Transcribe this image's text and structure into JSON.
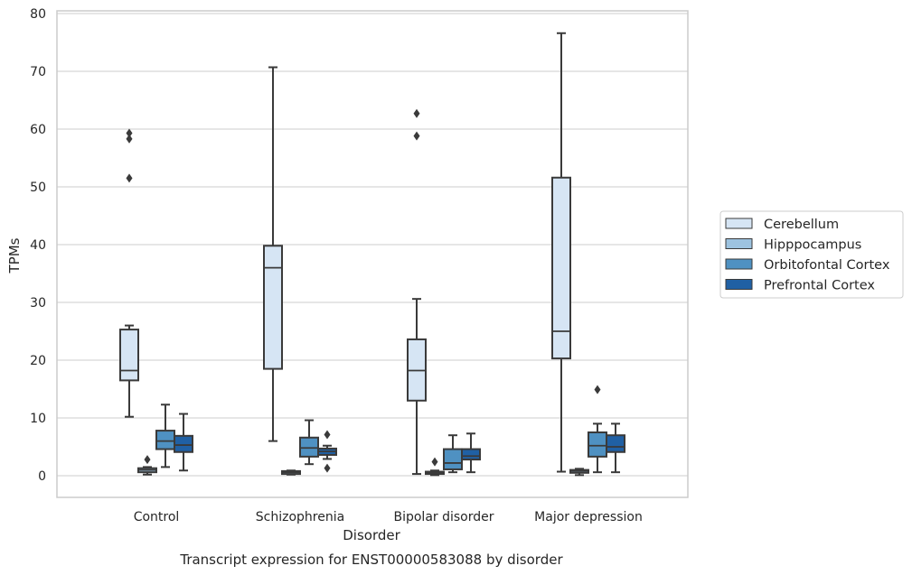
{
  "chart_data": {
    "type": "box",
    "title": "",
    "caption": "Transcript expression for ENST00000583088 by disorder",
    "xlabel": "Disorder",
    "ylabel": "TPMs",
    "ylim": [
      -3.5,
      80.5
    ],
    "yticks": [
      0,
      10,
      20,
      30,
      40,
      50,
      60,
      70,
      80
    ],
    "grid": "horizontal",
    "legend_position": "right",
    "categories": [
      "Control",
      "Schizophrenia",
      "Bipolar disorder",
      "Major depression"
    ],
    "series": [
      {
        "name": "Cerebellum",
        "color": "#d6e5f4",
        "boxes": [
          {
            "whisker_low": 10.2,
            "q1": 16.5,
            "median": 18.2,
            "q3": 25.3,
            "whisker_high": 26.0,
            "outliers": [
              51.5,
              58.3,
              59.3
            ]
          },
          {
            "whisker_low": 6.0,
            "q1": 18.5,
            "median": 36.0,
            "q3": 39.8,
            "whisker_high": 70.7,
            "outliers": []
          },
          {
            "whisker_low": 0.3,
            "q1": 13.0,
            "median": 18.2,
            "q3": 23.6,
            "whisker_high": 30.6,
            "outliers": [
              58.8,
              62.7
            ]
          },
          {
            "whisker_low": 0.7,
            "q1": 20.3,
            "median": 25.0,
            "q3": 51.6,
            "whisker_high": 76.6,
            "outliers": []
          }
        ]
      },
      {
        "name": "Hipppocampus",
        "color": "#9dc3e0",
        "boxes": [
          {
            "whisker_low": 0.2,
            "q1": 0.6,
            "median": 1.0,
            "q3": 1.3,
            "whisker_high": 1.5,
            "outliers": [
              2.8
            ]
          },
          {
            "whisker_low": 0.2,
            "q1": 0.3,
            "median": 0.6,
            "q3": 0.8,
            "whisker_high": 0.9,
            "outliers": []
          },
          {
            "whisker_low": 0.1,
            "q1": 0.3,
            "median": 0.5,
            "q3": 0.7,
            "whisker_high": 0.9,
            "outliers": [
              2.4
            ]
          },
          {
            "whisker_low": 0.1,
            "q1": 0.5,
            "median": 0.8,
            "q3": 1.0,
            "whisker_high": 1.2,
            "outliers": []
          }
        ]
      },
      {
        "name": "Orbitofontal Cortex",
        "color": "#4f91c2",
        "boxes": [
          {
            "whisker_low": 1.5,
            "q1": 4.6,
            "median": 6.0,
            "q3": 7.8,
            "whisker_high": 12.3,
            "outliers": []
          },
          {
            "whisker_low": 2.0,
            "q1": 3.3,
            "median": 4.8,
            "q3": 6.6,
            "whisker_high": 9.6,
            "outliers": []
          },
          {
            "whisker_low": 0.6,
            "q1": 1.1,
            "median": 2.2,
            "q3": 4.6,
            "whisker_high": 7.0,
            "outliers": []
          },
          {
            "whisker_low": 0.6,
            "q1": 3.3,
            "median": 5.2,
            "q3": 7.5,
            "whisker_high": 9.0,
            "outliers": [
              14.9
            ]
          }
        ]
      },
      {
        "name": "Prefrontal Cortex",
        "color": "#2060a4",
        "boxes": [
          {
            "whisker_low": 0.9,
            "q1": 4.1,
            "median": 5.3,
            "q3": 6.9,
            "whisker_high": 10.7,
            "outliers": []
          },
          {
            "whisker_low": 2.9,
            "q1": 3.6,
            "median": 4.2,
            "q3": 4.7,
            "whisker_high": 5.2,
            "outliers": [
              1.3,
              7.1
            ]
          },
          {
            "whisker_low": 0.6,
            "q1": 2.8,
            "median": 3.4,
            "q3": 4.6,
            "whisker_high": 7.3,
            "outliers": []
          },
          {
            "whisker_low": 0.6,
            "q1": 4.1,
            "median": 5.0,
            "q3": 7.0,
            "whisker_high": 9.0,
            "outliers": []
          }
        ]
      }
    ]
  }
}
